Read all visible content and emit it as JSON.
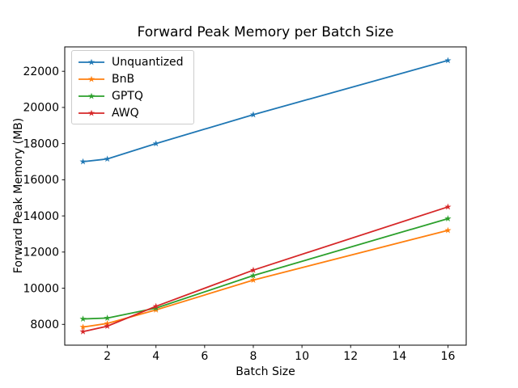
{
  "figure": {
    "background": "#ffffff",
    "text_color": "#000000"
  },
  "chart_data": {
    "type": "line",
    "title": "Forward Peak Memory per Batch Size",
    "xlabel": "Batch Size",
    "ylabel": "Forward Peak Memory (MB)",
    "x": [
      1,
      2,
      4,
      8,
      16
    ],
    "series": [
      {
        "name": "Unquantized",
        "color": "#1f77b4",
        "values": [
          17000,
          17150,
          18000,
          19600,
          22600
        ]
      },
      {
        "name": "BnB",
        "color": "#ff7f0e",
        "values": [
          7850,
          8050,
          8800,
          10450,
          13200
        ]
      },
      {
        "name": "GPTQ",
        "color": "#2ca02c",
        "values": [
          8300,
          8350,
          8900,
          10700,
          13850
        ]
      },
      {
        "name": "AWQ",
        "color": "#d62728",
        "values": [
          7600,
          7900,
          9000,
          11000,
          14500
        ]
      }
    ],
    "marker": "star",
    "xlim": [
      0.25,
      16.75
    ],
    "ylim": [
      6850,
      23350
    ],
    "xticks": [
      2,
      4,
      6,
      8,
      10,
      12,
      14,
      16
    ],
    "yticks": [
      8000,
      10000,
      12000,
      14000,
      16000,
      18000,
      20000,
      22000
    ],
    "grid": false,
    "legend_position": "upper-left",
    "legend_entries": [
      "Unquantized",
      "BnB",
      "GPTQ",
      "AWQ"
    ],
    "axis_color": "#000000",
    "legend_border_color": "#cccccc"
  }
}
